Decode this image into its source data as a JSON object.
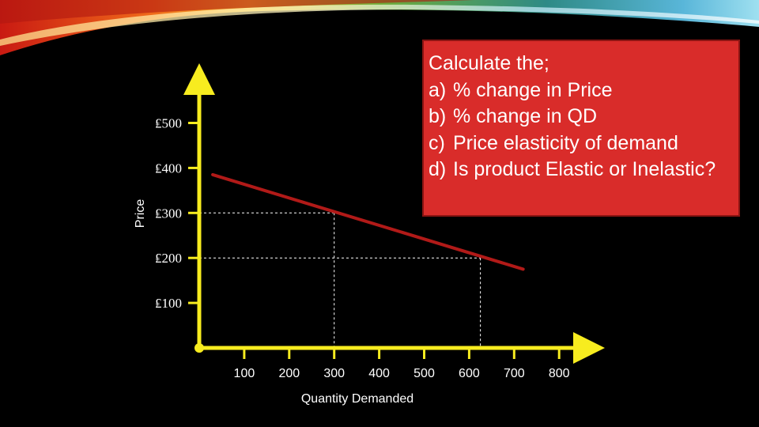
{
  "question": {
    "heading": "Calculate the;",
    "items": [
      {
        "marker": "a)",
        "text": "% change in Price"
      },
      {
        "marker": "b)",
        "text": "% change in QD"
      },
      {
        "marker": "c)",
        "text": "Price elasticity of demand"
      },
      {
        "marker": "d)",
        "text": "Is product Elastic or Inelastic?"
      }
    ]
  },
  "colors": {
    "axis": "#f7ec1f",
    "demand_line": "#b11a18",
    "question_box": "#d92c2a",
    "guide_lines": "#ffffff"
  },
  "chart_data": {
    "type": "line",
    "title": "",
    "xlabel": "Quantity Demanded",
    "ylabel": "Price",
    "xlim": [
      0,
      800
    ],
    "ylim": [
      0,
      500
    ],
    "x_ticks": [
      100,
      200,
      300,
      400,
      500,
      600,
      700,
      800
    ],
    "x_tick_labels": [
      "100",
      "200",
      "300",
      "400",
      "500",
      "600",
      "700",
      "800"
    ],
    "y_ticks": [
      100,
      200,
      300,
      400,
      500
    ],
    "y_tick_labels": [
      "₤100",
      "₤200",
      "₤300",
      "₤400",
      "₤500"
    ],
    "series": [
      {
        "points": [
          [
            30,
            385
          ],
          [
            720,
            175
          ]
        ]
      }
    ],
    "guide_points": [
      {
        "x": 300,
        "y": 300
      },
      {
        "x": 625,
        "y": 200
      }
    ],
    "grid": false,
    "legend": "none"
  }
}
